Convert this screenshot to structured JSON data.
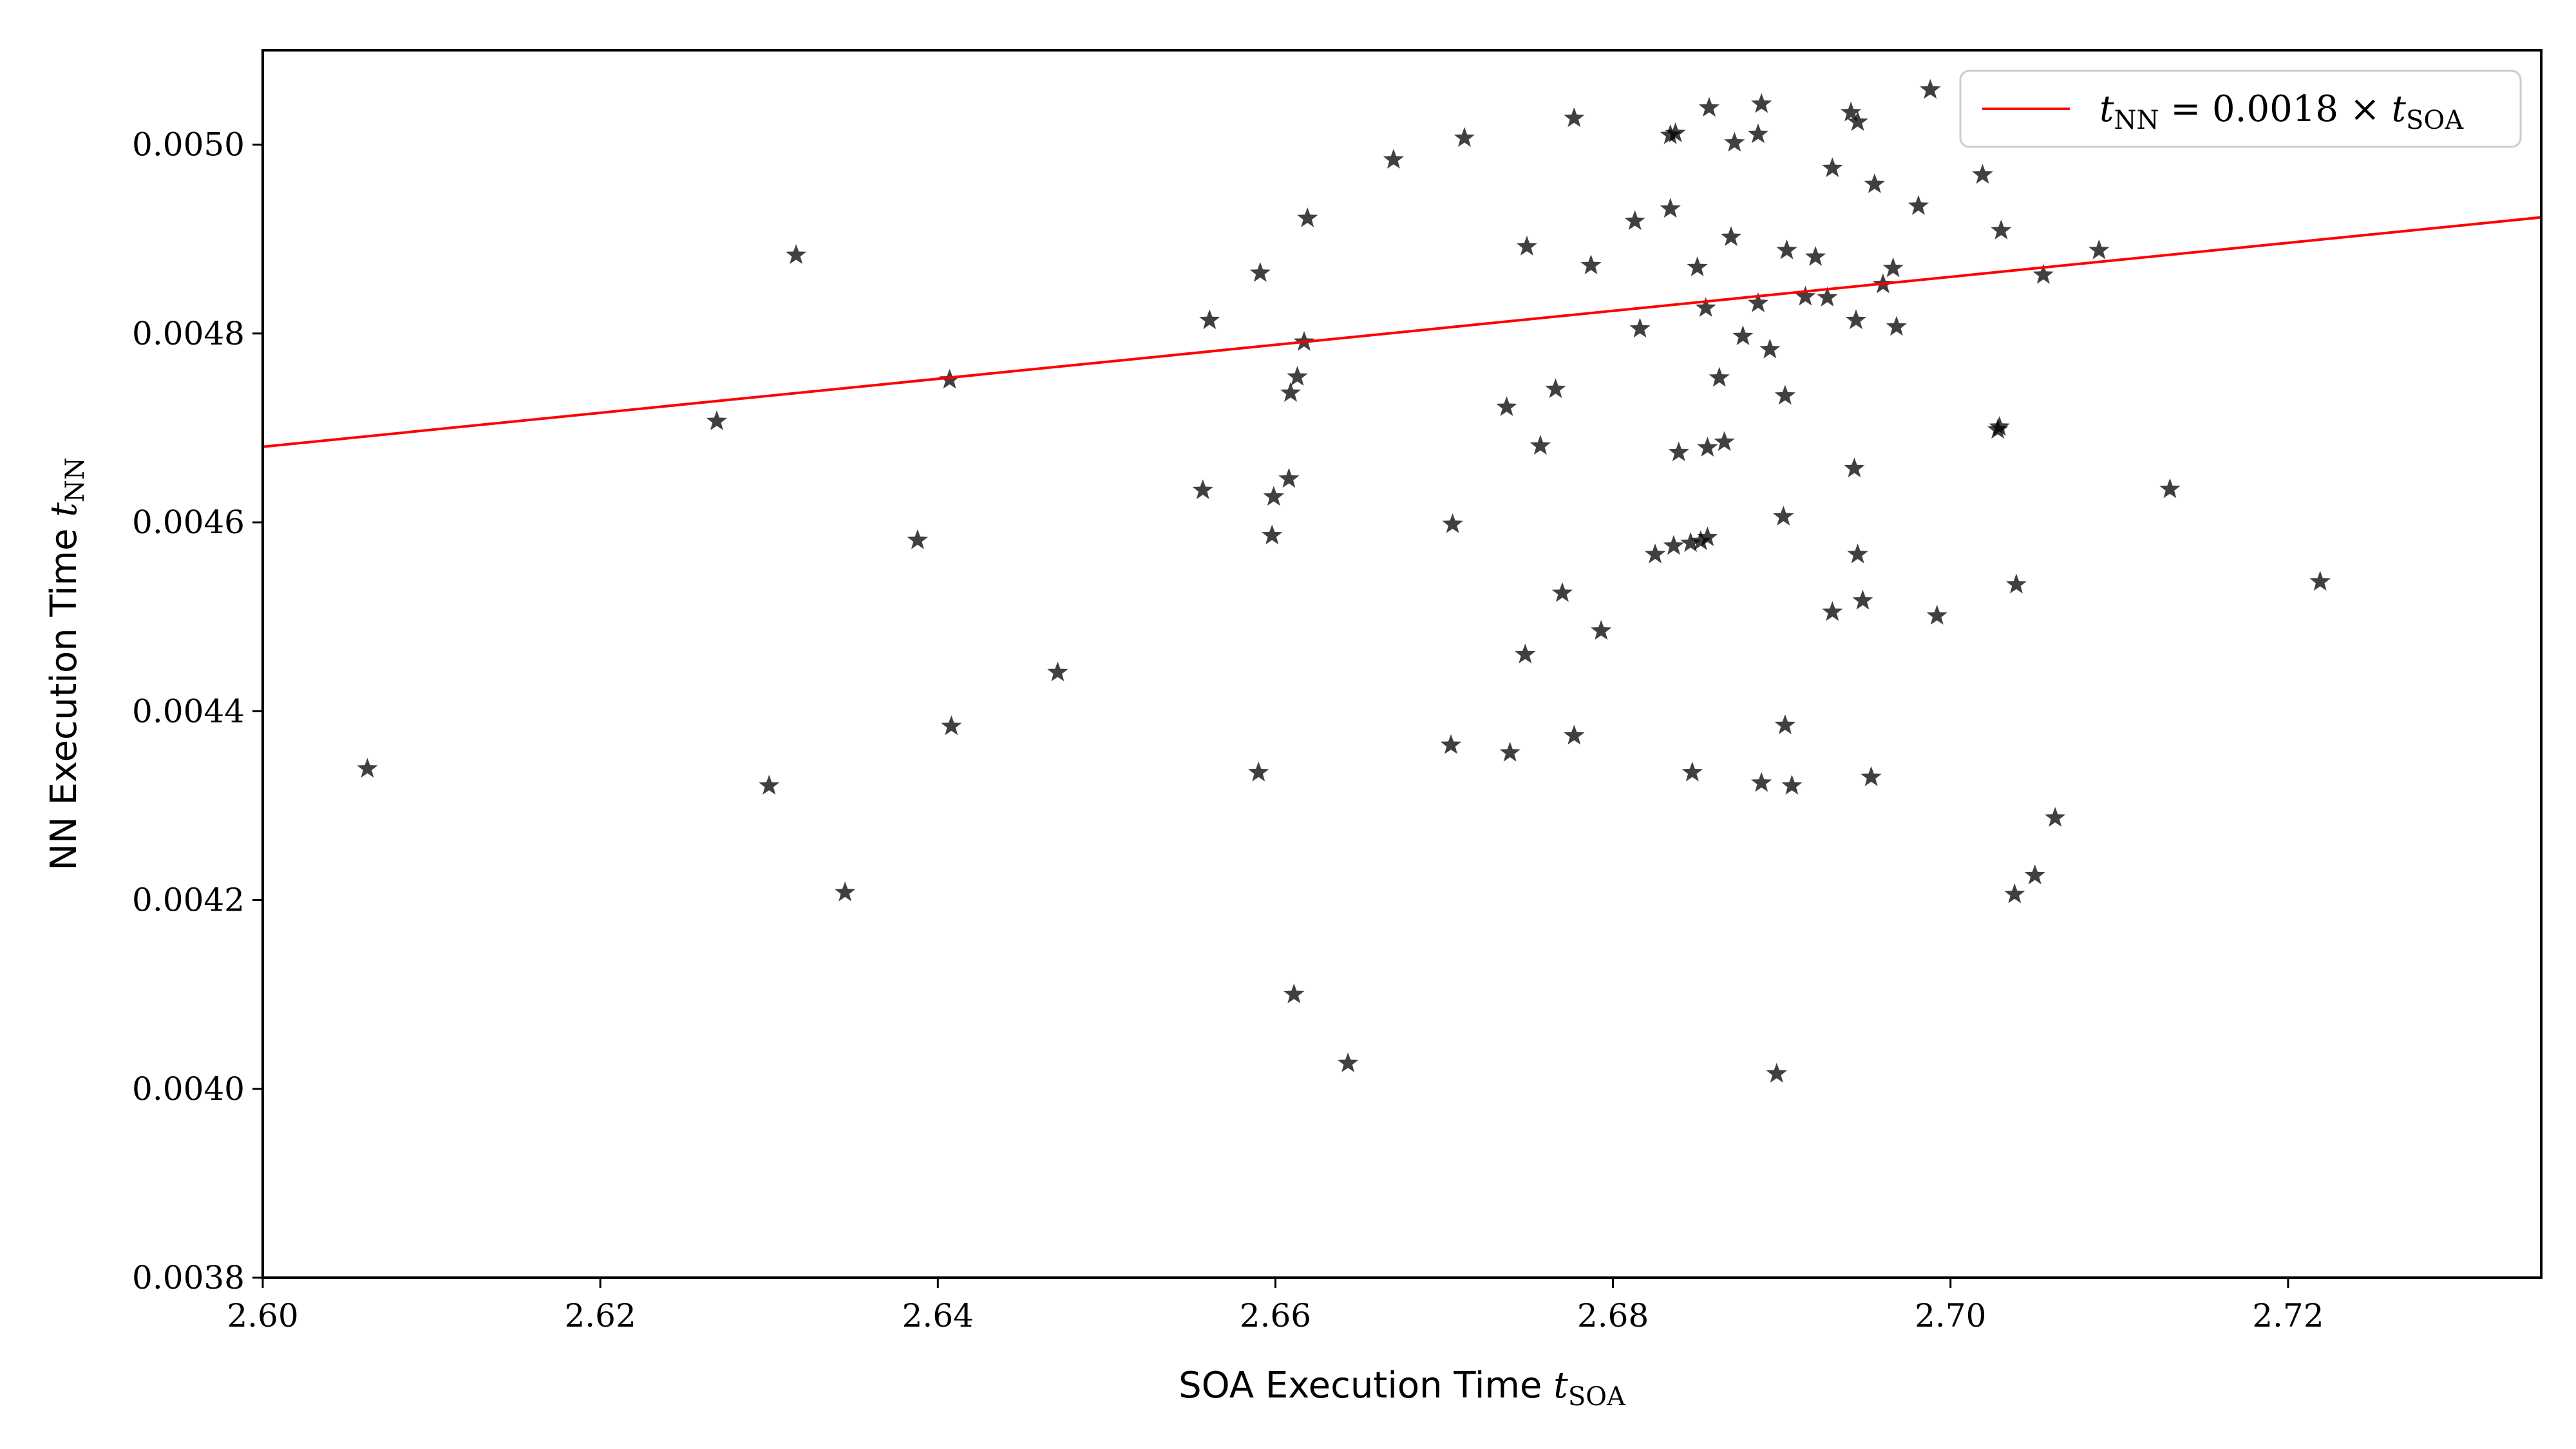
{
  "chart_data": {
    "type": "scatter",
    "xlabel": "SOA Execution Time",
    "xlabel_symbol": "t",
    "xlabel_sub": "SOA",
    "ylabel": "NN Execution Time",
    "ylabel_symbol": "t",
    "ylabel_sub": "NN",
    "xlim": [
      2.6,
      2.735
    ],
    "ylim": [
      0.0038,
      0.0051
    ],
    "xticks": [
      2.6,
      2.62,
      2.64,
      2.66,
      2.68,
      2.7,
      2.72
    ],
    "xtick_labels": [
      "2.60",
      "2.62",
      "2.64",
      "2.66",
      "2.68",
      "2.70",
      "2.72"
    ],
    "yticks": [
      0.0038,
      0.004,
      0.0042,
      0.0044,
      0.0046,
      0.0048,
      0.005
    ],
    "ytick_labels": [
      "0.0038",
      "0.0040",
      "0.0042",
      "0.0044",
      "0.0046",
      "0.0048",
      "0.0050"
    ],
    "grid": false,
    "legend_position": "top-right",
    "colors": {
      "points": "#000000",
      "fit_line": "#ff0000"
    },
    "marker": "star",
    "series": [
      {
        "name": "",
        "type": "scatter",
        "points": [
          [
            2.6062,
            0.004339
          ],
          [
            2.6269,
            0.004707
          ],
          [
            2.63,
            0.004321
          ],
          [
            2.6316,
            0.004883
          ],
          [
            2.6345,
            0.004208
          ],
          [
            2.6388,
            0.004581
          ],
          [
            2.6407,
            0.004751
          ],
          [
            2.6408,
            0.004384
          ],
          [
            2.6471,
            0.004441
          ],
          [
            2.6557,
            0.004634
          ],
          [
            2.6561,
            0.004814
          ],
          [
            2.659,
            0.004335
          ],
          [
            2.6591,
            0.004864
          ],
          [
            2.6598,
            0.004586
          ],
          [
            2.6599,
            0.004627
          ],
          [
            2.6608,
            0.004646
          ],
          [
            2.6609,
            0.004737
          ],
          [
            2.6611,
            0.0041
          ],
          [
            2.6613,
            0.004754
          ],
          [
            2.6617,
            0.004791
          ],
          [
            2.6619,
            0.004922
          ],
          [
            2.6643,
            0.004027
          ],
          [
            2.667,
            0.004984
          ],
          [
            2.6704,
            0.004364
          ],
          [
            2.6705,
            0.004598
          ],
          [
            2.6712,
            0.005007
          ],
          [
            2.6737,
            0.004722
          ],
          [
            2.6739,
            0.004356
          ],
          [
            2.6748,
            0.00446
          ],
          [
            2.6749,
            0.004892
          ],
          [
            2.6757,
            0.004681
          ],
          [
            2.6766,
            0.004741
          ],
          [
            2.677,
            0.004525
          ],
          [
            2.6777,
            0.004374
          ],
          [
            2.6777,
            0.005028
          ],
          [
            2.6787,
            0.004872
          ],
          [
            2.6793,
            0.004485
          ],
          [
            2.6813,
            0.004919
          ],
          [
            2.6816,
            0.004805
          ],
          [
            2.6825,
            0.004566
          ],
          [
            2.6834,
            0.004932
          ],
          [
            2.6834,
            0.00501
          ],
          [
            2.6836,
            0.004575
          ],
          [
            2.6837,
            0.005012
          ],
          [
            2.6839,
            0.004674
          ],
          [
            2.6846,
            0.004578
          ],
          [
            2.6847,
            0.004335
          ],
          [
            2.685,
            0.00487
          ],
          [
            2.6852,
            0.00458
          ],
          [
            2.6855,
            0.004827
          ],
          [
            2.6856,
            0.004584
          ],
          [
            2.6856,
            0.004679
          ],
          [
            2.6857,
            0.005039
          ],
          [
            2.6863,
            0.004753
          ],
          [
            2.6866,
            0.004685
          ],
          [
            2.687,
            0.004902
          ],
          [
            2.6872,
            0.005002
          ],
          [
            2.6877,
            0.004797
          ],
          [
            2.6886,
            0.004832
          ],
          [
            2.6886,
            0.005011
          ],
          [
            2.6888,
            0.004324
          ],
          [
            2.6888,
            0.005043
          ],
          [
            2.6893,
            0.004783
          ],
          [
            2.6897,
            0.004016
          ],
          [
            2.6901,
            0.004606
          ],
          [
            2.6902,
            0.004385
          ],
          [
            2.6902,
            0.004734
          ],
          [
            2.6903,
            0.004888
          ],
          [
            2.6906,
            0.004321
          ],
          [
            2.6914,
            0.004839
          ],
          [
            2.692,
            0.004881
          ],
          [
            2.6927,
            0.004838
          ],
          [
            2.693,
            0.004505
          ],
          [
            2.693,
            0.004975
          ],
          [
            2.6941,
            0.005034
          ],
          [
            2.6943,
            0.004657
          ],
          [
            2.6944,
            0.004814
          ],
          [
            2.6945,
            0.004566
          ],
          [
            2.6945,
            0.005024
          ],
          [
            2.6948,
            0.004517
          ],
          [
            2.6953,
            0.00433
          ],
          [
            2.6955,
            0.004958
          ],
          [
            2.696,
            0.004852
          ],
          [
            2.6966,
            0.004869
          ],
          [
            2.6968,
            0.004807
          ],
          [
            2.6981,
            0.004935
          ],
          [
            2.6988,
            0.005058
          ],
          [
            2.6992,
            0.004501
          ],
          [
            2.7019,
            0.004968
          ],
          [
            2.7028,
            0.004698
          ],
          [
            2.7029,
            0.004701
          ],
          [
            2.703,
            0.004909
          ],
          [
            2.7038,
            0.004206
          ],
          [
            2.7039,
            0.004534
          ],
          [
            2.705,
            0.004226
          ],
          [
            2.7055,
            0.004862
          ],
          [
            2.7062,
            0.004287
          ],
          [
            2.7088,
            0.004888
          ],
          [
            2.713,
            0.004635
          ],
          [
            2.7219,
            0.004537
          ]
        ]
      }
    ],
    "fit_line": {
      "legend_label_lhs": "t",
      "legend_label_lhs_sub": "NN",
      "legend_label_mid": " = 0.0018 × ",
      "legend_label_rhs": "t",
      "legend_label_rhs_sub": "SOA",
      "slope": 0.0018
    }
  }
}
